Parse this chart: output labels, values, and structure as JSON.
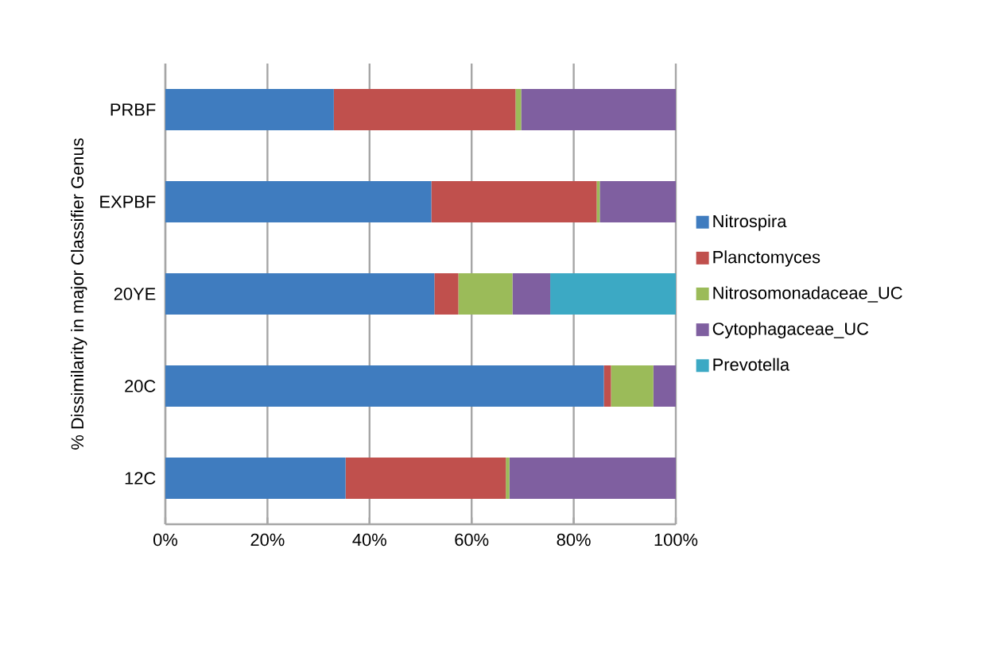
{
  "chart_data": {
    "type": "bar",
    "orientation": "horizontal",
    "stacked": true,
    "ylabel": "% Dissimilarity in major Classifier Genus",
    "categories": [
      "PRBF",
      "EXPBF",
      "20YE",
      "20C",
      "12C"
    ],
    "series": [
      {
        "name": "Nitrospira",
        "color": "#3f7cbf",
        "values": [
          33.0,
          52.1,
          52.7,
          85.9,
          35.3
        ]
      },
      {
        "name": "Planctomyces",
        "color": "#c0504d",
        "values": [
          35.6,
          32.4,
          4.7,
          1.4,
          31.4
        ]
      },
      {
        "name": "Nitrosomonadaceae_UC",
        "color": "#9bbb59",
        "values": [
          1.1,
          0.6,
          10.6,
          8.3,
          0.7
        ]
      },
      {
        "name": "Cytophagaceae_UC",
        "color": "#7f5fa0",
        "values": [
          30.3,
          14.9,
          7.4,
          4.4,
          32.6
        ]
      },
      {
        "name": "Prevotella",
        "color": "#3ca9c4",
        "values": [
          0,
          0,
          24.6,
          0,
          0
        ]
      }
    ],
    "xlim": [
      0,
      100
    ],
    "xticks": [
      {
        "value": 0,
        "label": "0%"
      },
      {
        "value": 20,
        "label": "20%"
      },
      {
        "value": 40,
        "label": "40%"
      },
      {
        "value": 60,
        "label": "60%"
      },
      {
        "value": 80,
        "label": "80%"
      },
      {
        "value": 100,
        "label": "100%"
      }
    ],
    "grid": "x",
    "legend": "right"
  }
}
